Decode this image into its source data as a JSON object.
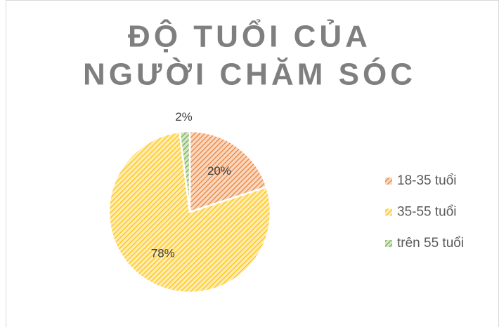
{
  "chart_data": {
    "type": "pie",
    "title": [
      "ĐỘ TUỔI CỦA",
      "NGƯỜI CHĂM SÓC"
    ],
    "categories": [
      "18-35 tuổi",
      "35-55 tuổi",
      "trên 55 tuổi"
    ],
    "values": [
      20,
      78,
      2
    ],
    "value_labels": [
      "20%",
      "78%",
      "2%"
    ],
    "colors": [
      "#ed7d31",
      "#ffc000",
      "#70ad47"
    ],
    "legend": "right"
  }
}
